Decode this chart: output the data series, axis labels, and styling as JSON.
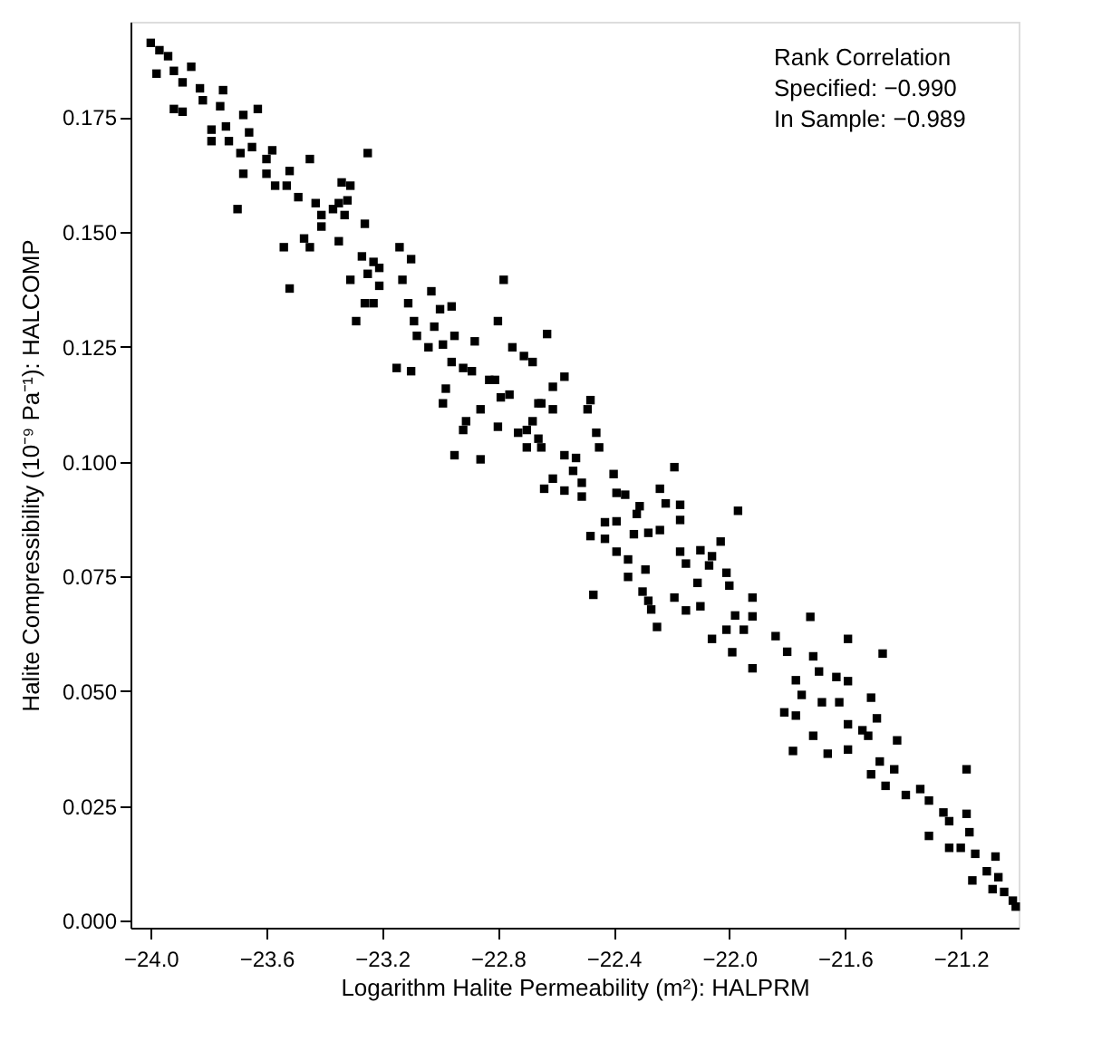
{
  "chart_data": {
    "type": "scatter",
    "xlabel": "Logarithm Halite Permeability (m²): HALPRM",
    "ylabel": "Halite Compressibility  (10⁻⁹ Pa⁻¹): HALCOMP",
    "annotations": [
      "Rank Correlation",
      "Specified: −0.990",
      "In Sample: −0.989"
    ],
    "xlim": [
      -24.07,
      -21.0
    ],
    "ylim": [
      -0.0015,
      0.1958
    ],
    "xticks": [
      {
        "value": -24.0,
        "label": "−24.0"
      },
      {
        "value": -23.6,
        "label": "−23.6"
      },
      {
        "value": -23.2,
        "label": "−23.2"
      },
      {
        "value": -22.8,
        "label": "−22.8"
      },
      {
        "value": -22.4,
        "label": "−22.4"
      },
      {
        "value": -22.0,
        "label": "−22.0"
      },
      {
        "value": -21.6,
        "label": "−21.6"
      },
      {
        "value": -21.2,
        "label": "−21.2"
      }
    ],
    "yticks": [
      {
        "value": 0.0,
        "label": "0.000"
      },
      {
        "value": 0.025,
        "label": "0.025"
      },
      {
        "value": 0.05,
        "label": "0.050"
      },
      {
        "value": 0.075,
        "label": "0.075"
      },
      {
        "value": 0.1,
        "label": "0.100"
      },
      {
        "value": 0.125,
        "label": "0.125"
      },
      {
        "value": 0.15,
        "label": "0.150"
      },
      {
        "value": 0.175,
        "label": "0.175"
      }
    ],
    "grid": false,
    "marker": "square",
    "series": [
      {
        "color": "#000000",
        "x": [
          -24.0,
          -23.97,
          -23.94,
          -23.98,
          -23.92,
          -23.86,
          -23.89,
          -23.83,
          -23.92,
          -23.89,
          -23.82,
          -23.75,
          -23.76,
          -23.79,
          -23.74,
          -23.79,
          -23.73,
          -23.68,
          -23.63,
          -23.66,
          -23.69,
          -23.65,
          -23.68,
          -23.7,
          -23.6,
          -23.58,
          -23.6,
          -23.57,
          -23.52,
          -23.45,
          -23.53,
          -23.49,
          -23.54,
          -23.52,
          -23.47,
          -23.45,
          -23.43,
          -23.41,
          -23.37,
          -23.41,
          -23.35,
          -23.34,
          -23.31,
          -23.32,
          -23.33,
          -23.35,
          -23.25,
          -23.26,
          -23.27,
          -23.23,
          -23.25,
          -23.21,
          -23.31,
          -23.26,
          -23.23,
          -23.29,
          -23.21,
          -23.14,
          -23.1,
          -23.13,
          -23.11,
          -23.09,
          -23.15,
          -23.1,
          -23.08,
          -23.04,
          -23.03,
          -23.0,
          -23.02,
          -22.96,
          -22.99,
          -22.95,
          -22.96,
          -22.98,
          -22.99,
          -22.92,
          -22.88,
          -22.89,
          -22.83,
          -22.81,
          -22.91,
          -22.92,
          -22.86,
          -22.8,
          -22.79,
          -22.76,
          -22.8,
          -22.78,
          -22.86,
          -22.95,
          -22.73,
          -22.75,
          -22.71,
          -22.68,
          -22.66,
          -22.68,
          -22.7,
          -22.63,
          -22.57,
          -22.61,
          -22.48,
          -22.49,
          -22.65,
          -22.61,
          -22.66,
          -22.7,
          -22.65,
          -22.46,
          -22.45,
          -22.57,
          -22.53,
          -22.54,
          -22.61,
          -22.64,
          -22.57,
          -22.51,
          -22.51,
          -22.4,
          -22.39,
          -22.36,
          -22.19,
          -22.24,
          -22.22,
          -22.17,
          -22.31,
          -22.32,
          -22.39,
          -22.43,
          -22.48,
          -22.43,
          -22.33,
          -22.28,
          -22.24,
          -22.17,
          -22.39,
          -22.35,
          -22.29,
          -22.35,
          -22.47,
          -22.3,
          -22.28,
          -22.27,
          -22.25,
          -22.19,
          -22.17,
          -22.15,
          -22.1,
          -22.06,
          -22.03,
          -22.11,
          -22.07,
          -22.01,
          -22.0,
          -22.15,
          -22.1,
          -21.97,
          -21.92,
          -21.98,
          -21.92,
          -22.01,
          -22.06,
          -21.99,
          -21.95,
          -21.92,
          -21.72,
          -21.59,
          -21.47,
          -21.84,
          -21.8,
          -21.71,
          -21.69,
          -21.63,
          -21.59,
          -21.77,
          -21.75,
          -21.68,
          -21.62,
          -21.51,
          -21.81,
          -21.77,
          -21.59,
          -21.49,
          -21.78,
          -21.71,
          -21.66,
          -21.59,
          -21.54,
          -21.52,
          -21.42,
          -21.48,
          -21.43,
          -21.51,
          -21.46,
          -21.39,
          -21.34,
          -21.31,
          -21.26,
          -21.24,
          -21.18,
          -21.18,
          -21.31,
          -21.24,
          -21.17,
          -21.2,
          -21.15,
          -21.08,
          -21.16,
          -21.11,
          -21.07,
          -21.05,
          -21.02,
          -21.09,
          -21.01
        ],
        "values": [
          0.1912,
          0.1896,
          0.1883,
          0.1845,
          0.1851,
          0.186,
          0.1826,
          0.1813,
          0.1768,
          0.1762,
          0.1787,
          0.1809,
          0.1774,
          0.1723,
          0.173,
          0.1698,
          0.1698,
          0.1755,
          0.1768,
          0.1717,
          0.1672,
          0.1685,
          0.1627,
          0.155,
          0.1659,
          0.1678,
          0.1627,
          0.1601,
          0.1633,
          0.1659,
          0.1601,
          0.1576,
          0.1467,
          0.1377,
          0.1486,
          0.1467,
          0.1563,
          0.1537,
          0.155,
          0.1512,
          0.1563,
          0.1608,
          0.1601,
          0.1569,
          0.1537,
          0.148,
          0.1672,
          0.1518,
          0.1447,
          0.1435,
          0.1409,
          0.1422,
          0.1396,
          0.1345,
          0.1345,
          0.1306,
          0.1383,
          0.1467,
          0.1441,
          0.1396,
          0.1345,
          0.1306,
          0.1204,
          0.1197,
          0.1274,
          0.1249,
          0.1371,
          0.1332,
          0.1294,
          0.1338,
          0.1255,
          0.1274,
          0.1217,
          0.1159,
          0.1127,
          0.1204,
          0.1262,
          0.1197,
          0.1178,
          0.1178,
          0.1088,
          0.1069,
          0.1114,
          0.1076,
          0.114,
          0.1146,
          0.1306,
          0.1396,
          0.1005,
          0.1014,
          0.1063,
          0.1249,
          0.123,
          0.1217,
          0.1127,
          0.1088,
          0.1069,
          0.1278,
          0.1185,
          0.1163,
          0.1134,
          0.1114,
          0.1127,
          0.1114,
          0.105,
          0.1031,
          0.1031,
          0.1063,
          0.1031,
          0.1014,
          0.1008,
          0.098,
          0.0963,
          0.0941,
          0.0937,
          0.0954,
          0.0924,
          0.0973,
          0.0932,
          0.0928,
          0.0988,
          0.0941,
          0.0909,
          0.0906,
          0.0903,
          0.0886,
          0.087,
          0.0868,
          0.0838,
          0.0832,
          0.0842,
          0.0845,
          0.0851,
          0.0873,
          0.0804,
          0.0787,
          0.0765,
          0.0749,
          0.071,
          0.0717,
          0.0697,
          0.0678,
          0.064,
          0.0704,
          0.0804,
          0.0778,
          0.0807,
          0.0794,
          0.0826,
          0.0736,
          0.0774,
          0.0758,
          0.073,
          0.0676,
          0.0685,
          0.0893,
          0.0704,
          0.0665,
          0.0663,
          0.0634,
          0.0614,
          0.0585,
          0.0634,
          0.055,
          0.0662,
          0.0614,
          0.0582,
          0.062,
          0.0586,
          0.0576,
          0.0543,
          0.0531,
          0.0522,
          0.0524,
          0.0492,
          0.0476,
          0.0476,
          0.0486,
          0.0454,
          0.0447,
          0.0428,
          0.0441,
          0.037,
          0.0403,
          0.0364,
          0.0373,
          0.0415,
          0.0403,
          0.0393,
          0.0347,
          0.033,
          0.0319,
          0.0294,
          0.0274,
          0.0287,
          0.0262,
          0.0236,
          0.0217,
          0.033,
          0.0233,
          0.0185,
          0.0159,
          0.0193,
          0.0159,
          0.0146,
          0.014,
          0.0088,
          0.0108,
          0.0095,
          0.0063,
          0.0044,
          0.0069,
          0.0031
        ]
      }
    ]
  }
}
